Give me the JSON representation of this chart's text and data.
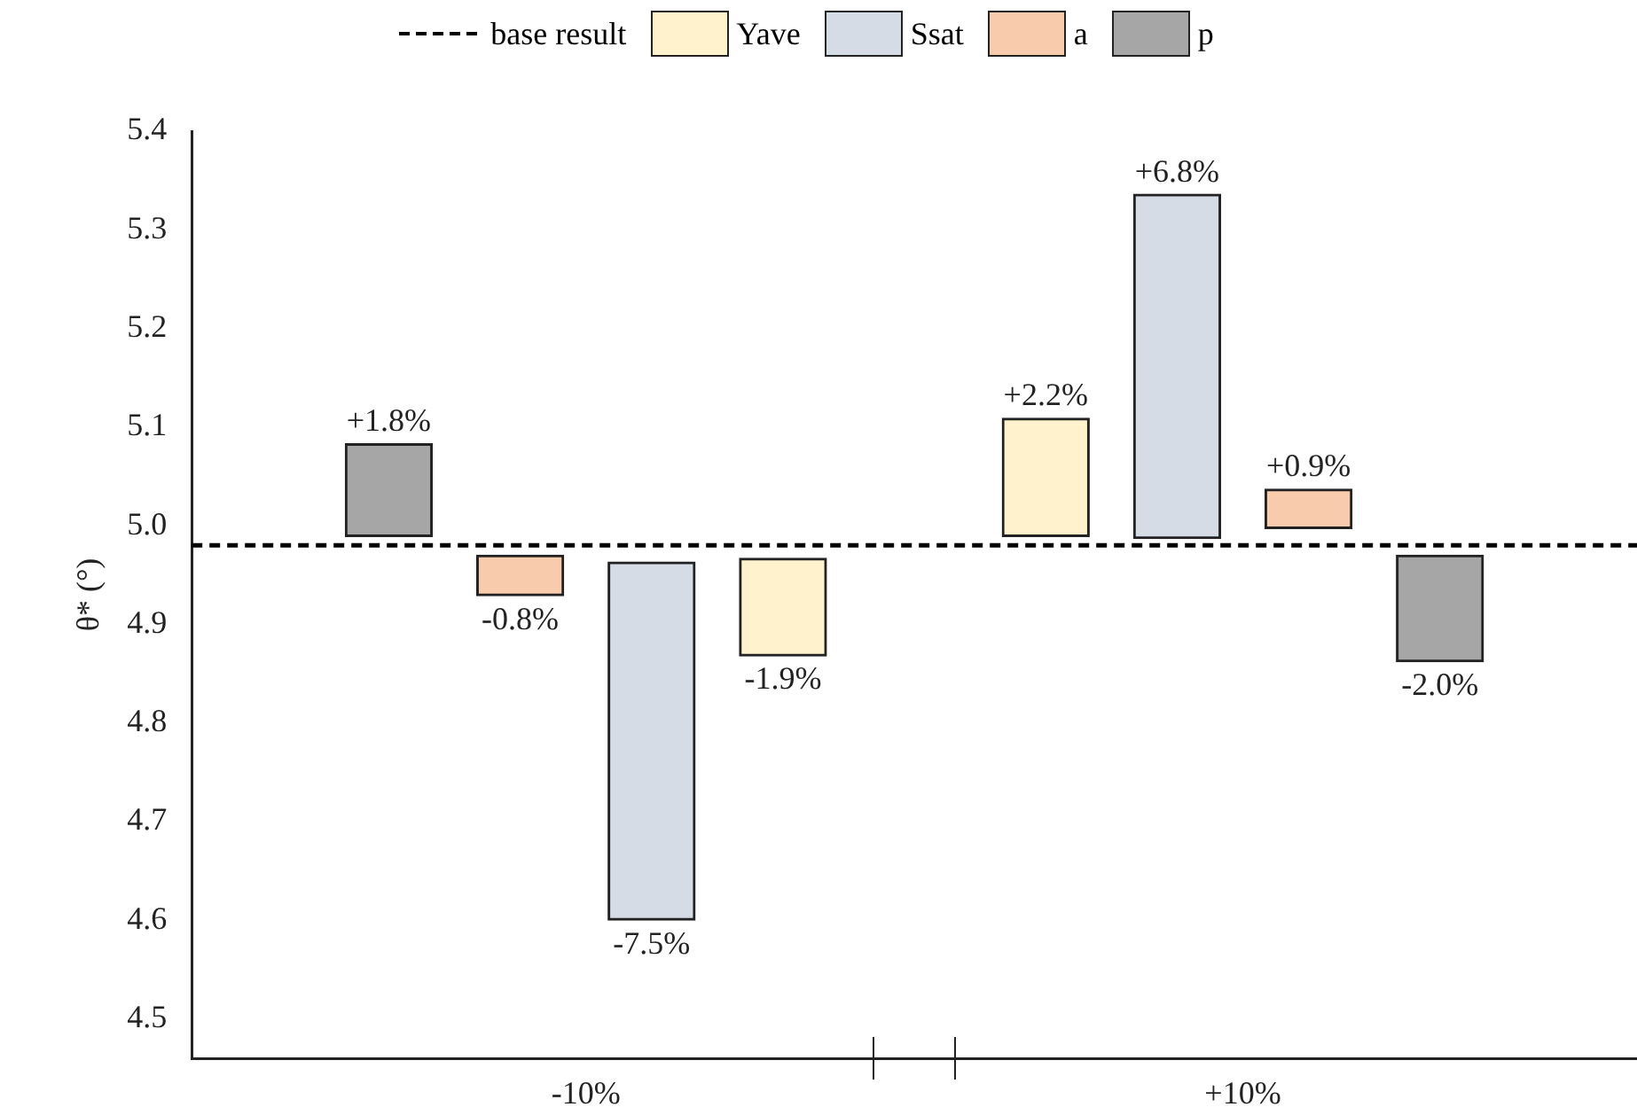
{
  "chart_data": {
    "type": "bar",
    "ylabel": "θ* (°)",
    "categories": [
      "-10%",
      "+10%"
    ],
    "series": [
      {
        "name": "Yave",
        "color": "#fff2cc",
        "base": [
          4.967,
          4.989
        ],
        "values": [
          -0.099,
          0.12
        ]
      },
      {
        "name": "Ssat",
        "color": "#d6dce5",
        "base": [
          4.963,
          4.987
        ],
        "values": [
          -0.363,
          0.349
        ]
      },
      {
        "name": "a",
        "color": "#f8cbad",
        "base": [
          4.97,
          4.997
        ],
        "values": [
          -0.041,
          0.04
        ]
      },
      {
        "name": "p",
        "color": "#a6a6a6",
        "base": [
          4.989,
          4.97
        ],
        "values": [
          0.094,
          -0.108
        ]
      }
    ],
    "annotations": [
      "+1.8%",
      "-0.8%",
      "-7.5%",
      "-1.9%",
      "+2.2%",
      "+6.8%",
      "+0.9%",
      "-2.0%"
    ],
    "ref_lines": [
      {
        "axis": "y",
        "value": 4.98,
        "label": "base result",
        "color": "#000000",
        "line_style": "dashed"
      }
    ],
    "ylim": [
      4.46,
      5.4
    ],
    "yticks": [
      4.5,
      4.6,
      4.7,
      4.8,
      4.9,
      {
        "value": 5,
        "label": "5.0"
      },
      5.1,
      5.2,
      5.3,
      5.4
    ],
    "grid": false,
    "legend": "top"
  }
}
